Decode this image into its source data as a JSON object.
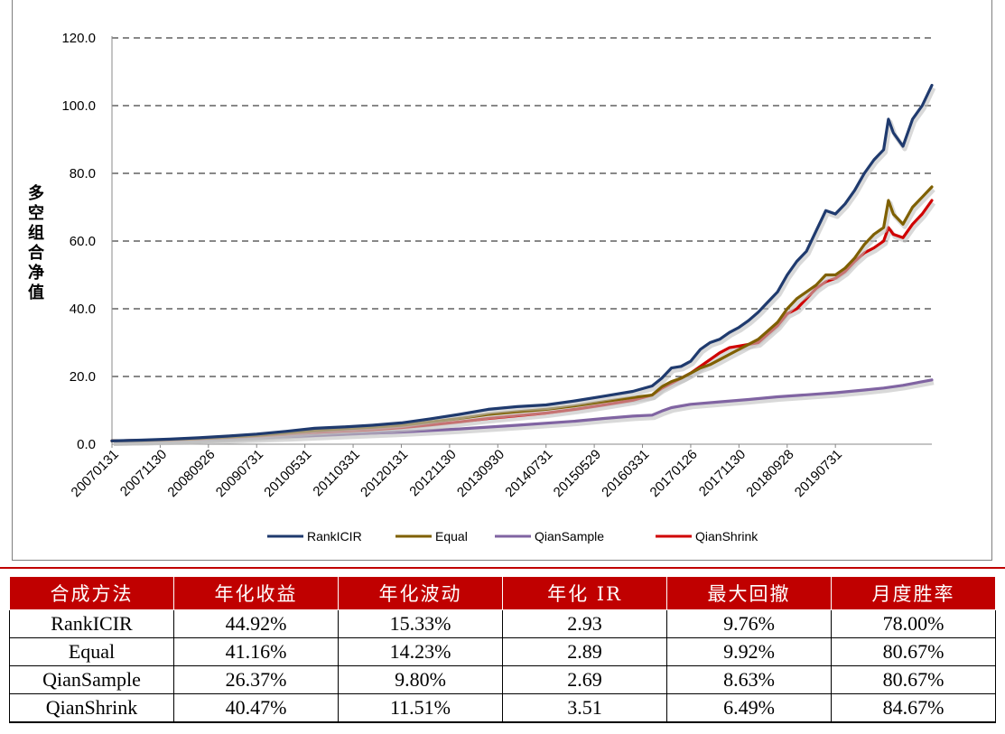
{
  "chart_data": {
    "type": "line",
    "ylabel": "多空组合净值",
    "ylim": [
      0,
      120
    ],
    "yticks": [
      "0.0",
      "20.0",
      "40.0",
      "60.0",
      "80.0",
      "100.0",
      "120.0"
    ],
    "grid": "horizontal-dashed",
    "legend": "bottom",
    "x_tick_labels": [
      "20070131",
      "20071130",
      "20080926",
      "20090731",
      "20100531",
      "20110331",
      "20120131",
      "20121130",
      "20130930",
      "20140731",
      "20150529",
      "20160331",
      "20170126",
      "20171130",
      "20180928",
      "20190731"
    ],
    "x_range": [
      "20070131",
      "20190731"
    ],
    "series": [
      {
        "name": "RankICIR",
        "color": "#1f3a6e",
        "points": [
          [
            0,
            1.0
          ],
          [
            6,
            1.2
          ],
          [
            12,
            1.5
          ],
          [
            18,
            1.9
          ],
          [
            24,
            2.4
          ],
          [
            30,
            3.0
          ],
          [
            36,
            3.8
          ],
          [
            42,
            4.7
          ],
          [
            48,
            5.1
          ],
          [
            54,
            5.6
          ],
          [
            60,
            6.3
          ],
          [
            66,
            7.5
          ],
          [
            72,
            8.8
          ],
          [
            78,
            10.3
          ],
          [
            84,
            11.1
          ],
          [
            90,
            11.6
          ],
          [
            96,
            12.8
          ],
          [
            102,
            14.2
          ],
          [
            108,
            15.6
          ],
          [
            112,
            17.2
          ],
          [
            114,
            19.5
          ],
          [
            116,
            22.5
          ],
          [
            118,
            23.0
          ],
          [
            120,
            24.5
          ],
          [
            122,
            28.0
          ],
          [
            124,
            30.0
          ],
          [
            126,
            31.0
          ],
          [
            128,
            33.0
          ],
          [
            130,
            34.5
          ],
          [
            132,
            36.5
          ],
          [
            134,
            39.0
          ],
          [
            136,
            42.0
          ],
          [
            138,
            45.0
          ],
          [
            140,
            50.0
          ],
          [
            142,
            54.0
          ],
          [
            144,
            57.0
          ],
          [
            146,
            63.0
          ],
          [
            147,
            66.0
          ],
          [
            148,
            69.0
          ],
          [
            150,
            68.0
          ],
          [
            152,
            71.0
          ],
          [
            154,
            75.0
          ],
          [
            156,
            80.0
          ],
          [
            158,
            84.0
          ],
          [
            160,
            87.0
          ],
          [
            161,
            96.0
          ],
          [
            162,
            92.0
          ],
          [
            164,
            88.0
          ],
          [
            166,
            96.0
          ],
          [
            168,
            100.0
          ],
          [
            170,
            106.0
          ]
        ]
      },
      {
        "name": "Equal",
        "color": "#7f6000",
        "points": [
          [
            0,
            1.0
          ],
          [
            6,
            1.1
          ],
          [
            12,
            1.4
          ],
          [
            18,
            1.7
          ],
          [
            24,
            2.1
          ],
          [
            30,
            2.6
          ],
          [
            36,
            3.3
          ],
          [
            42,
            4.0
          ],
          [
            48,
            4.5
          ],
          [
            54,
            5.0
          ],
          [
            60,
            5.6
          ],
          [
            66,
            6.6
          ],
          [
            72,
            7.6
          ],
          [
            78,
            8.8
          ],
          [
            84,
            9.6
          ],
          [
            90,
            10.3
          ],
          [
            96,
            11.3
          ],
          [
            102,
            12.6
          ],
          [
            108,
            13.8
          ],
          [
            112,
            14.5
          ],
          [
            114,
            17.0
          ],
          [
            116,
            18.5
          ],
          [
            118,
            19.5
          ],
          [
            120,
            21.0
          ],
          [
            122,
            22.5
          ],
          [
            124,
            23.5
          ],
          [
            126,
            25.0
          ],
          [
            128,
            26.5
          ],
          [
            130,
            28.0
          ],
          [
            132,
            29.5
          ],
          [
            134,
            31.0
          ],
          [
            136,
            33.5
          ],
          [
            138,
            36.0
          ],
          [
            140,
            40.0
          ],
          [
            142,
            43.0
          ],
          [
            144,
            45.0
          ],
          [
            146,
            47.0
          ],
          [
            148,
            50.0
          ],
          [
            150,
            50.0
          ],
          [
            152,
            52.0
          ],
          [
            154,
            55.0
          ],
          [
            156,
            59.0
          ],
          [
            158,
            62.0
          ],
          [
            160,
            64.0
          ],
          [
            161,
            72.0
          ],
          [
            162,
            68.0
          ],
          [
            164,
            65.0
          ],
          [
            166,
            70.0
          ],
          [
            168,
            73.0
          ],
          [
            170,
            76.0
          ]
        ]
      },
      {
        "name": "QianSample",
        "color": "#8064a2",
        "points": [
          [
            0,
            1.0
          ],
          [
            12,
            1.2
          ],
          [
            24,
            1.6
          ],
          [
            36,
            2.2
          ],
          [
            48,
            2.9
          ],
          [
            60,
            3.6
          ],
          [
            72,
            4.5
          ],
          [
            84,
            5.6
          ],
          [
            96,
            6.8
          ],
          [
            102,
            7.6
          ],
          [
            108,
            8.3
          ],
          [
            112,
            8.6
          ],
          [
            114,
            9.8
          ],
          [
            116,
            10.8
          ],
          [
            120,
            11.8
          ],
          [
            126,
            12.5
          ],
          [
            132,
            13.2
          ],
          [
            138,
            14.0
          ],
          [
            144,
            14.6
          ],
          [
            150,
            15.2
          ],
          [
            156,
            16.0
          ],
          [
            160,
            16.6
          ],
          [
            164,
            17.4
          ],
          [
            170,
            19.0
          ]
        ]
      },
      {
        "name": "QianShrink",
        "color": "#d00000",
        "points": [
          [
            0,
            1.0
          ],
          [
            6,
            1.1
          ],
          [
            12,
            1.3
          ],
          [
            18,
            1.6
          ],
          [
            24,
            2.0
          ],
          [
            30,
            2.4
          ],
          [
            36,
            2.9
          ],
          [
            42,
            3.5
          ],
          [
            48,
            3.9
          ],
          [
            54,
            4.3
          ],
          [
            60,
            4.9
          ],
          [
            66,
            5.7
          ],
          [
            72,
            6.6
          ],
          [
            78,
            7.6
          ],
          [
            84,
            8.4
          ],
          [
            90,
            9.2
          ],
          [
            96,
            10.3
          ],
          [
            102,
            11.6
          ],
          [
            108,
            13.0
          ],
          [
            112,
            14.5
          ],
          [
            114,
            16.5
          ],
          [
            116,
            18.0
          ],
          [
            118,
            19.5
          ],
          [
            120,
            21.0
          ],
          [
            122,
            23.0
          ],
          [
            124,
            25.0
          ],
          [
            126,
            27.0
          ],
          [
            128,
            28.5
          ],
          [
            130,
            29.0
          ],
          [
            132,
            29.5
          ],
          [
            134,
            30.0
          ],
          [
            136,
            32.5
          ],
          [
            138,
            35.0
          ],
          [
            140,
            38.5
          ],
          [
            142,
            40.0
          ],
          [
            144,
            43.0
          ],
          [
            146,
            46.0
          ],
          [
            148,
            48.0
          ],
          [
            150,
            49.0
          ],
          [
            152,
            51.0
          ],
          [
            154,
            54.0
          ],
          [
            156,
            56.5
          ],
          [
            158,
            58.0
          ],
          [
            160,
            60.0
          ],
          [
            161,
            64.0
          ],
          [
            162,
            62.0
          ],
          [
            164,
            61.0
          ],
          [
            166,
            65.0
          ],
          [
            168,
            68.0
          ],
          [
            170,
            72.0
          ]
        ]
      }
    ]
  },
  "table": {
    "headers": [
      "合成方法",
      "年化收益",
      "年化波动",
      "年化 IR",
      "最大回撤",
      "月度胜率"
    ],
    "rows": [
      [
        "RankICIR",
        "44.92%",
        "15.33%",
        "2.93",
        "9.76%",
        "78.00%"
      ],
      [
        "Equal",
        "41.16%",
        "14.23%",
        "2.89",
        "9.92%",
        "80.67%"
      ],
      [
        "QianSample",
        "26.37%",
        "9.80%",
        "2.69",
        "8.63%",
        "80.67%"
      ],
      [
        "QianShrink",
        "40.47%",
        "11.51%",
        "3.51",
        "6.49%",
        "84.67%"
      ]
    ]
  }
}
